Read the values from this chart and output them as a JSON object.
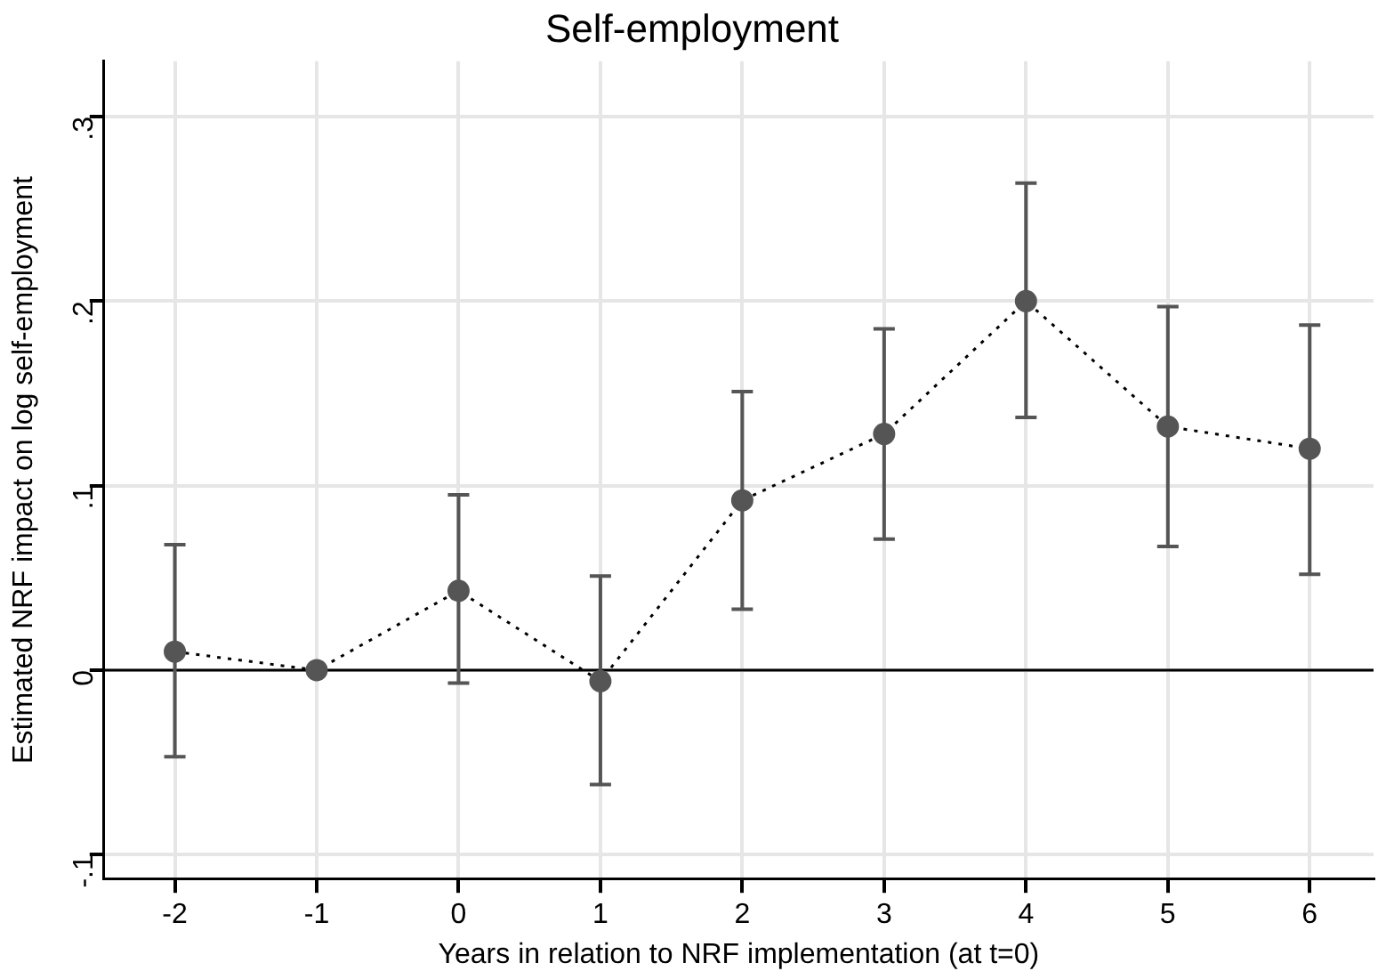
{
  "chart_data": {
    "type": "line",
    "title": "Self-employment",
    "xlabel": "Years in relation to NRF implementation (at t=0)",
    "ylabel": "Estimated NRF impact on log self-employment",
    "x": [
      -2,
      -1,
      0,
      1,
      2,
      3,
      4,
      5,
      6
    ],
    "series": [
      {
        "color": "#555555",
        "values": [
          0.01,
          0,
          0.043,
          -0.006,
          0.092,
          0.128,
          0.2,
          0.132,
          0.12
        ],
        "errors": [
          [
            -0.047,
            0.068
          ],
          null,
          [
            -0.007,
            0.095
          ],
          [
            -0.062,
            0.051
          ],
          [
            0.033,
            0.151
          ],
          [
            0.071,
            0.185
          ],
          [
            0.137,
            0.264
          ],
          [
            0.067,
            0.197
          ],
          [
            0.052,
            0.187
          ]
        ]
      }
    ],
    "xlim": [
      -2.5,
      6.45
    ],
    "xticks": [
      -2,
      -1,
      0,
      1,
      2,
      3,
      4,
      5,
      6
    ],
    "ylim": [
      -0.113,
      0.33
    ],
    "yticks": [
      {
        "value": -0.1,
        "label": "-.1"
      },
      0,
      {
        "value": 0.1,
        "label": ".1"
      },
      {
        "value": 0.2,
        "label": ".2"
      },
      {
        "value": 0.3,
        "label": ".3"
      }
    ],
    "ref_lines": [
      {
        "axis": "y",
        "value": 0,
        "color": "#000000"
      }
    ],
    "grid": true,
    "legend": false,
    "marker": "circle",
    "line_style": "dotted"
  }
}
